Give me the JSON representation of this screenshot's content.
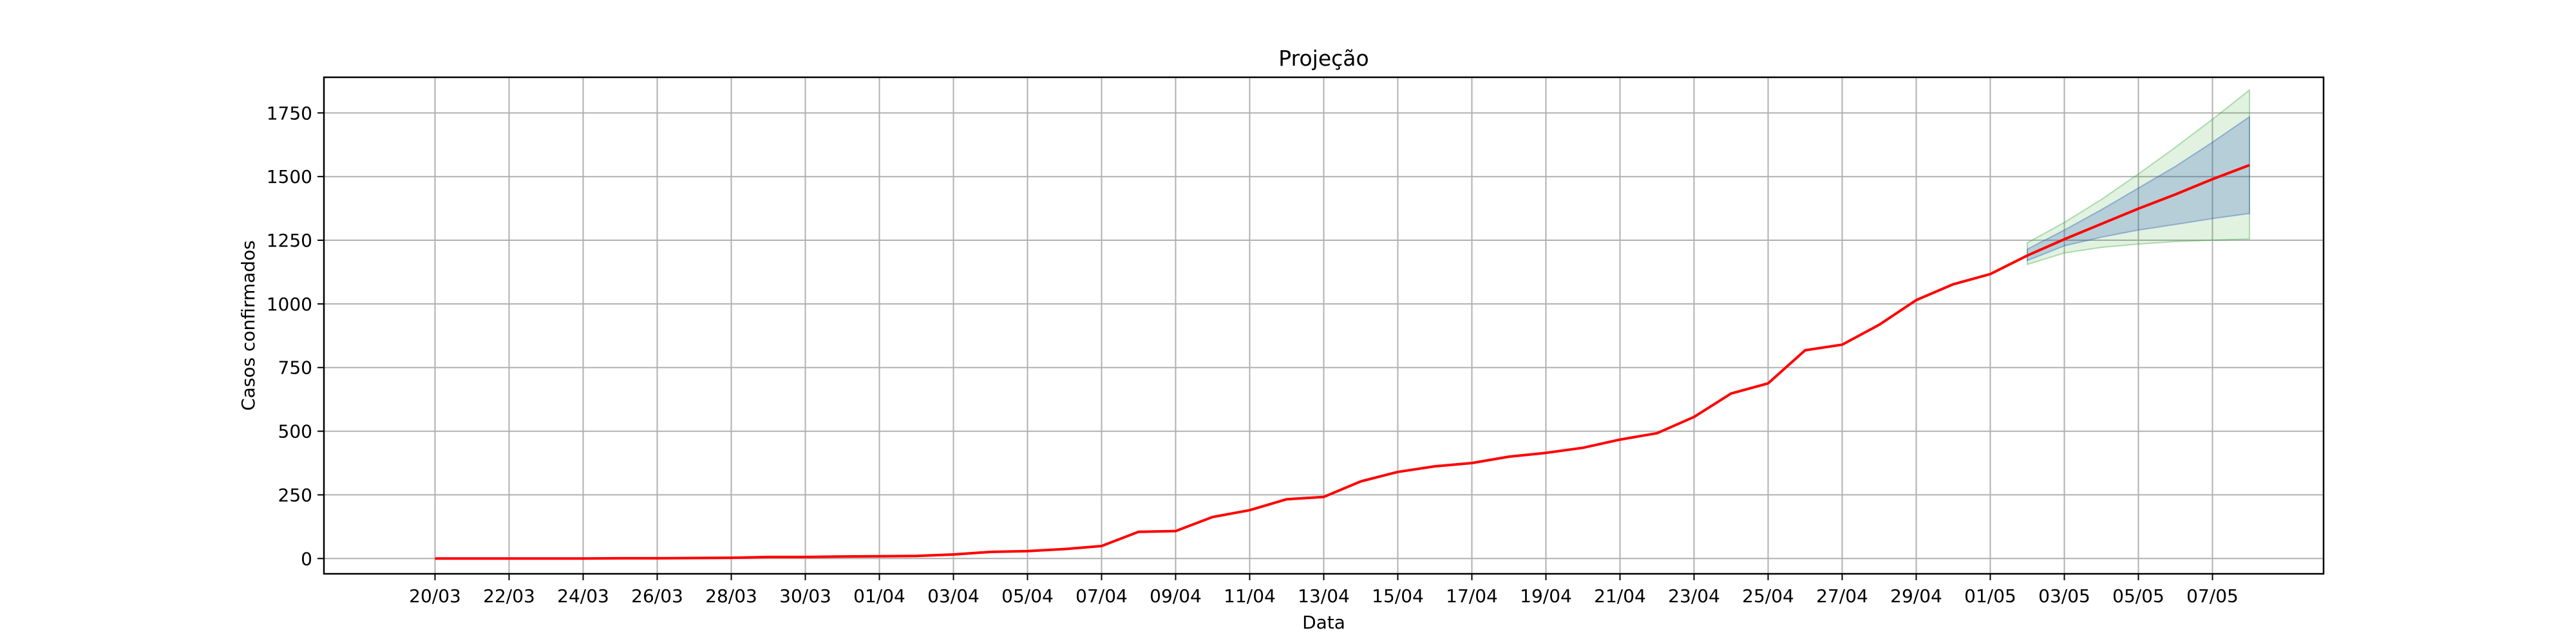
{
  "chart_data": {
    "type": "line",
    "title": "Projeção",
    "xlabel": "Data",
    "ylabel": "Casos confirmados",
    "grid": true,
    "legend": "none",
    "ylim": [
      -60,
      1890
    ],
    "xlim": [
      "2020-03-17",
      "2020-05-10"
    ],
    "x_tick_labels": [
      "20/03",
      "22/03",
      "24/03",
      "26/03",
      "28/03",
      "30/03",
      "01/04",
      "03/04",
      "05/04",
      "07/04",
      "09/04",
      "11/04",
      "13/04",
      "15/04",
      "17/04",
      "19/04",
      "21/04",
      "23/04",
      "25/04",
      "27/04",
      "29/04",
      "01/05",
      "03/05",
      "05/05",
      "07/05"
    ],
    "x_tick_dates": [
      "2020-03-20",
      "2020-03-22",
      "2020-03-24",
      "2020-03-26",
      "2020-03-28",
      "2020-03-30",
      "2020-04-01",
      "2020-04-03",
      "2020-04-05",
      "2020-04-07",
      "2020-04-09",
      "2020-04-11",
      "2020-04-13",
      "2020-04-15",
      "2020-04-17",
      "2020-04-19",
      "2020-04-21",
      "2020-04-23",
      "2020-04-25",
      "2020-04-27",
      "2020-04-29",
      "2020-05-01",
      "2020-05-03",
      "2020-05-05",
      "2020-05-07"
    ],
    "y_ticks": [
      0,
      250,
      500,
      750,
      1000,
      1250,
      1500,
      1750
    ],
    "colors": {
      "line": "#ff0000",
      "band_outer": "#2ca02c",
      "band_inner": "#1f4fb4",
      "grid": "#b0b0b0"
    },
    "series": [
      {
        "x": [
          "2020-03-20",
          "2020-03-21",
          "2020-03-22",
          "2020-03-23",
          "2020-03-24",
          "2020-03-25",
          "2020-03-26",
          "2020-03-27",
          "2020-03-28",
          "2020-03-29",
          "2020-03-30",
          "2020-03-31",
          "2020-04-01",
          "2020-04-02",
          "2020-04-03",
          "2020-04-04",
          "2020-04-05",
          "2020-04-06",
          "2020-04-07",
          "2020-04-08",
          "2020-04-09",
          "2020-04-10",
          "2020-04-11",
          "2020-04-12",
          "2020-04-13",
          "2020-04-14",
          "2020-04-15",
          "2020-04-16",
          "2020-04-17",
          "2020-04-18",
          "2020-04-19",
          "2020-04-20",
          "2020-04-21",
          "2020-04-22",
          "2020-04-23",
          "2020-04-24",
          "2020-04-25",
          "2020-04-26",
          "2020-04-27",
          "2020-04-28",
          "2020-04-29",
          "2020-04-30",
          "2020-05-01",
          "2020-05-02",
          "2020-05-03",
          "2020-05-04",
          "2020-05-05",
          "2020-05-06",
          "2020-05-07",
          "2020-05-08"
        ],
        "values": [
          0,
          0,
          0,
          0,
          0,
          1,
          1,
          2,
          3,
          6,
          6,
          8,
          9,
          10,
          16,
          26,
          29,
          37,
          49,
          105,
          108,
          163,
          190,
          233,
          242,
          303,
          340,
          362,
          375,
          400,
          415,
          435,
          467,
          492,
          556,
          648,
          688,
          818,
          840,
          918,
          1015,
          1077,
          1117,
          1190,
          1254,
          1314,
          1374,
          1430,
          1490,
          1545
        ]
      }
    ],
    "bands": [
      {
        "x": [
          "2020-05-02",
          "2020-05-03",
          "2020-05-04",
          "2020-05-05",
          "2020-05-06",
          "2020-05-07",
          "2020-05-08"
        ],
        "lower": [
          1155,
          1200,
          1222,
          1235,
          1245,
          1250,
          1255
        ],
        "upper": [
          1240,
          1320,
          1410,
          1510,
          1615,
          1725,
          1840
        ]
      },
      {
        "x": [
          "2020-05-02",
          "2020-05-03",
          "2020-05-04",
          "2020-05-05",
          "2020-05-06",
          "2020-05-07",
          "2020-05-08"
        ],
        "lower": [
          1170,
          1228,
          1262,
          1290,
          1312,
          1335,
          1355
        ],
        "upper": [
          1215,
          1290,
          1370,
          1455,
          1540,
          1635,
          1735
        ]
      }
    ]
  }
}
